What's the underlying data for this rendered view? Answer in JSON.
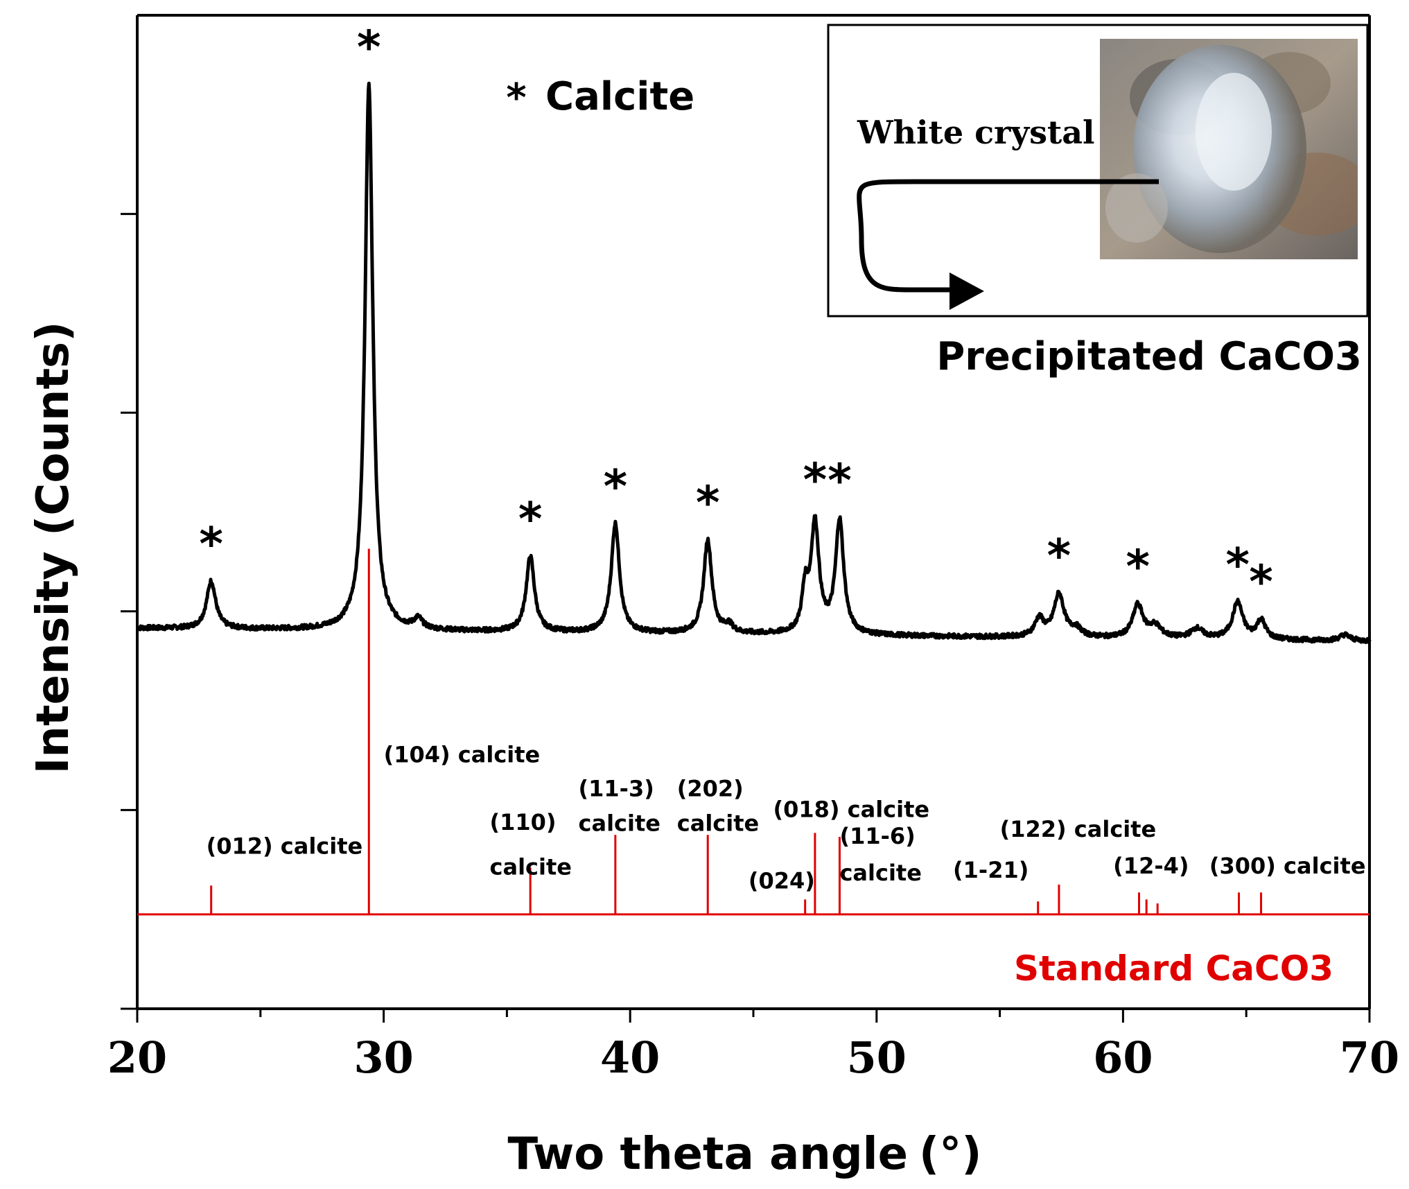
{
  "chart_data": {
    "type": "line",
    "title": "",
    "xlabel": "Two theta angle",
    "xlabel_unit": "(°)",
    "ylabel": "Intensity (Counts)",
    "xlim": [
      20,
      70
    ],
    "ylim": [
      0,
      100
    ],
    "x_ticks": [
      "20",
      "30",
      "40",
      "50",
      "60",
      "70"
    ],
    "series": [
      {
        "name": "Precipitated CaCO3",
        "color": "#000000",
        "baseline_start": 38.3,
        "baseline_end": 37.0,
        "peaks": [
          {
            "x": 23.0,
            "height": 4.8,
            "width": 0.22
          },
          {
            "x": 29.4,
            "height": 55.0,
            "width": 0.19
          },
          {
            "x": 31.4,
            "height": 1.0,
            "width": 0.2
          },
          {
            "x": 35.95,
            "height": 7.6,
            "width": 0.2
          },
          {
            "x": 39.4,
            "height": 11.0,
            "width": 0.2
          },
          {
            "x": 43.15,
            "height": 9.4,
            "width": 0.2
          },
          {
            "x": 44.0,
            "height": 0.8,
            "width": 0.2
          },
          {
            "x": 47.1,
            "height": 4.0,
            "width": 0.15
          },
          {
            "x": 47.5,
            "height": 11.0,
            "width": 0.2
          },
          {
            "x": 48.5,
            "height": 11.4,
            "width": 0.2
          },
          {
            "x": 56.6,
            "height": 1.8,
            "width": 0.22
          },
          {
            "x": 57.4,
            "height": 4.3,
            "width": 0.25
          },
          {
            "x": 58.1,
            "height": 0.8,
            "width": 0.25
          },
          {
            "x": 60.6,
            "height": 3.3,
            "width": 0.25
          },
          {
            "x": 61.3,
            "height": 1.2,
            "width": 0.3
          },
          {
            "x": 63.0,
            "height": 1.0,
            "width": 0.3
          },
          {
            "x": 64.65,
            "height": 3.7,
            "width": 0.25
          },
          {
            "x": 65.6,
            "height": 1.9,
            "width": 0.22
          },
          {
            "x": 69.0,
            "height": 0.6,
            "width": 0.25
          }
        ]
      },
      {
        "name": "Standard CaCO3",
        "color": "#e00000",
        "baseline": 9.5,
        "sticks": [
          {
            "x": 23.0,
            "value": 12.4
          },
          {
            "x": 29.4,
            "value": 46.3
          },
          {
            "x": 35.95,
            "value": 14.2
          },
          {
            "x": 39.4,
            "value": 17.5
          },
          {
            "x": 43.15,
            "value": 17.5
          },
          {
            "x": 47.1,
            "value": 11.0
          },
          {
            "x": 47.5,
            "value": 17.7
          },
          {
            "x": 48.5,
            "value": 17.3
          },
          {
            "x": 56.55,
            "value": 10.8
          },
          {
            "x": 57.4,
            "value": 12.5
          },
          {
            "x": 60.65,
            "value": 11.7
          },
          {
            "x": 60.95,
            "value": 11.0
          },
          {
            "x": 61.4,
            "value": 10.6
          },
          {
            "x": 64.7,
            "value": 11.7
          },
          {
            "x": 65.6,
            "value": 11.7
          }
        ]
      }
    ],
    "star_markers": [
      23.0,
      29.4,
      35.95,
      39.4,
      43.15,
      47.5,
      48.5,
      57.4,
      60.6,
      64.65,
      65.6
    ],
    "reflection_labels": [
      {
        "text": "(012) calcite",
        "x": 22.8,
        "y": 15.6
      },
      {
        "text": "(104) calcite",
        "x": 30.0,
        "y": 24.8
      },
      {
        "text": "(110)",
        "x": 34.3,
        "y": 18.0
      },
      {
        "text": "calcite",
        "x": 34.3,
        "y": 13.5
      },
      {
        "text": "(11-3)",
        "x": 37.9,
        "y": 21.4
      },
      {
        "text": "calcite",
        "x": 37.9,
        "y": 17.9
      },
      {
        "text": "(202)",
        "x": 41.9,
        "y": 21.4
      },
      {
        "text": "calcite",
        "x": 41.9,
        "y": 17.9
      },
      {
        "text": "(018) calcite",
        "x": 45.8,
        "y": 19.3
      },
      {
        "text": "(11-6)",
        "x": 48.5,
        "y": 16.6
      },
      {
        "text": "calcite",
        "x": 48.5,
        "y": 12.9
      },
      {
        "text": "(024)",
        "x": 44.8,
        "y": 12.1
      },
      {
        "text": "(1-21)",
        "x": 53.1,
        "y": 13.2
      },
      {
        "text": "(122) calcite",
        "x": 55.0,
        "y": 17.3
      },
      {
        "text": "(12-4)",
        "x": 59.6,
        "y": 13.6
      },
      {
        "text": "(300) calcite",
        "x": 63.5,
        "y": 13.6
      }
    ],
    "legend": {
      "symbol": "*",
      "label": "Calcite",
      "position": "top-center"
    },
    "series_labels": {
      "observed": "Precipitated CaCO3",
      "standard": "Standard CaCO3"
    },
    "inset": {
      "label": "White crystal",
      "position": "top-right"
    }
  }
}
